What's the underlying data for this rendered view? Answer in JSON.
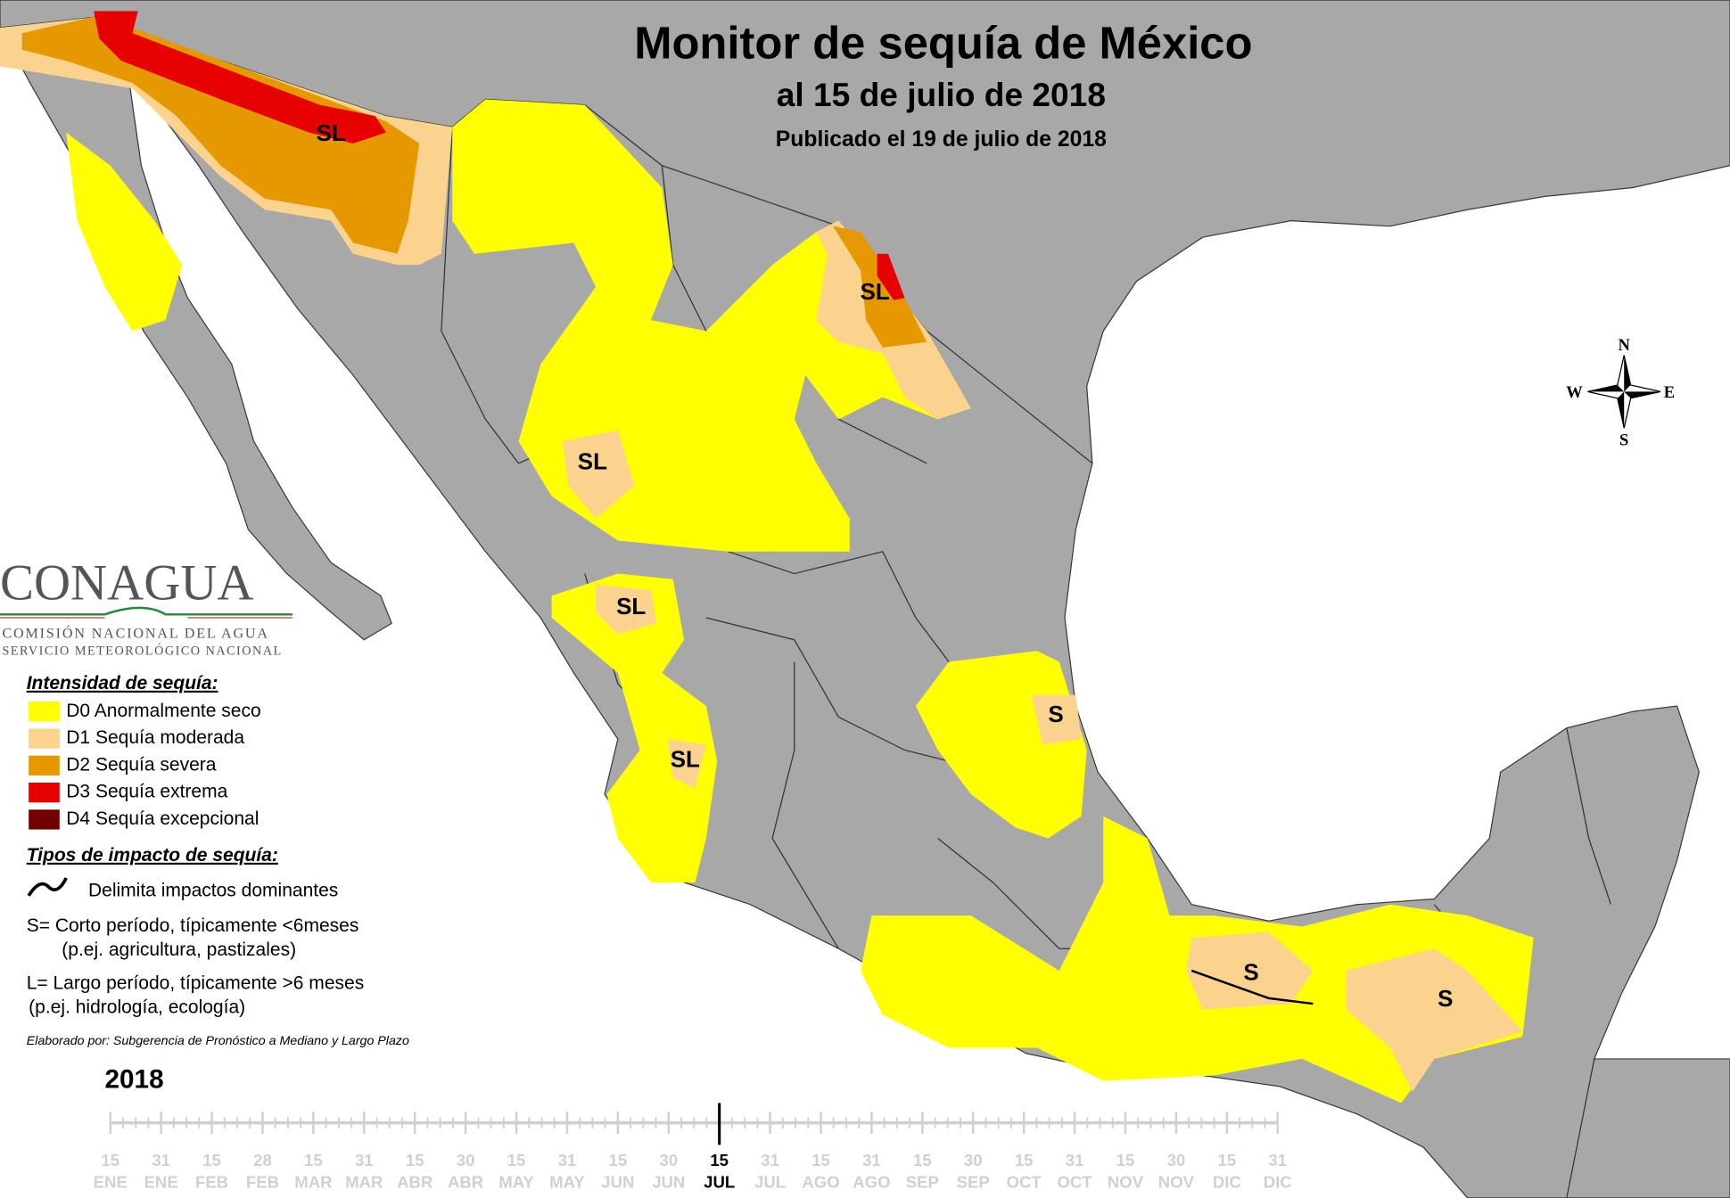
{
  "header": {
    "title": "Monitor de sequía de México",
    "subtitle": "al 15 de julio de 2018",
    "published": "Publicado el 19 de julio de 2018"
  },
  "logo": {
    "name": "CONAGUA",
    "line1": "COMISIÓN NACIONAL DEL AGUA",
    "line2": "SERVICIO METEOROLÓGICO NACIONAL"
  },
  "legend": {
    "intensity_title": "Intensidad de sequía:",
    "items": [
      {
        "label": "D0 Anormalmente seco",
        "color": "#ffff00"
      },
      {
        "label": "D1 Sequía moderada",
        "color": "#fcd38e"
      },
      {
        "label": "D2 Sequía severa",
        "color": "#e69800"
      },
      {
        "label": "D3 Sequía extrema",
        "color": "#e60000"
      },
      {
        "label": "D4 Sequía excepcional",
        "color": "#730000"
      }
    ],
    "impact_title": "Tipos de impacto de sequía:",
    "impact_line": "Delimita impactos dominantes",
    "short_term": [
      "S= Corto período, típicamente <6meses",
      "(p.ej. agricultura, pastizales)"
    ],
    "long_term": [
      "L= Largo período, típicamente >6 meses",
      "(p.ej. hidrología, ecología)"
    ],
    "credit": "Elaborado por: Subgerencia de Pronóstico a Mediano y Largo Plazo"
  },
  "map": {
    "labels": [
      "SL",
      "SL",
      "SL",
      "SL",
      "SL",
      "S",
      "S",
      "S"
    ],
    "compass": {
      "n": "N",
      "e": "E",
      "s": "S",
      "w": "W"
    }
  },
  "timeline": {
    "year": "2018",
    "selected": 12,
    "ticks": [
      {
        "day": "15",
        "month": "ENE"
      },
      {
        "day": "31",
        "month": "ENE"
      },
      {
        "day": "15",
        "month": "FEB"
      },
      {
        "day": "28",
        "month": "FEB"
      },
      {
        "day": "15",
        "month": "MAR"
      },
      {
        "day": "31",
        "month": "MAR"
      },
      {
        "day": "15",
        "month": "ABR"
      },
      {
        "day": "30",
        "month": "ABR"
      },
      {
        "day": "15",
        "month": "MAY"
      },
      {
        "day": "31",
        "month": "MAY"
      },
      {
        "day": "15",
        "month": "JUN"
      },
      {
        "day": "30",
        "month": "JUN"
      },
      {
        "day": "15",
        "month": "JUL"
      },
      {
        "day": "31",
        "month": "JUL"
      },
      {
        "day": "15",
        "month": "AGO"
      },
      {
        "day": "31",
        "month": "AGO"
      },
      {
        "day": "15",
        "month": "SEP"
      },
      {
        "day": "30",
        "month": "SEP"
      },
      {
        "day": "15",
        "month": "OCT"
      },
      {
        "day": "31",
        "month": "OCT"
      },
      {
        "day": "15",
        "month": "NOV"
      },
      {
        "day": "30",
        "month": "NOV"
      },
      {
        "day": "15",
        "month": "DIC"
      },
      {
        "day": "31",
        "month": "DIC"
      }
    ]
  }
}
